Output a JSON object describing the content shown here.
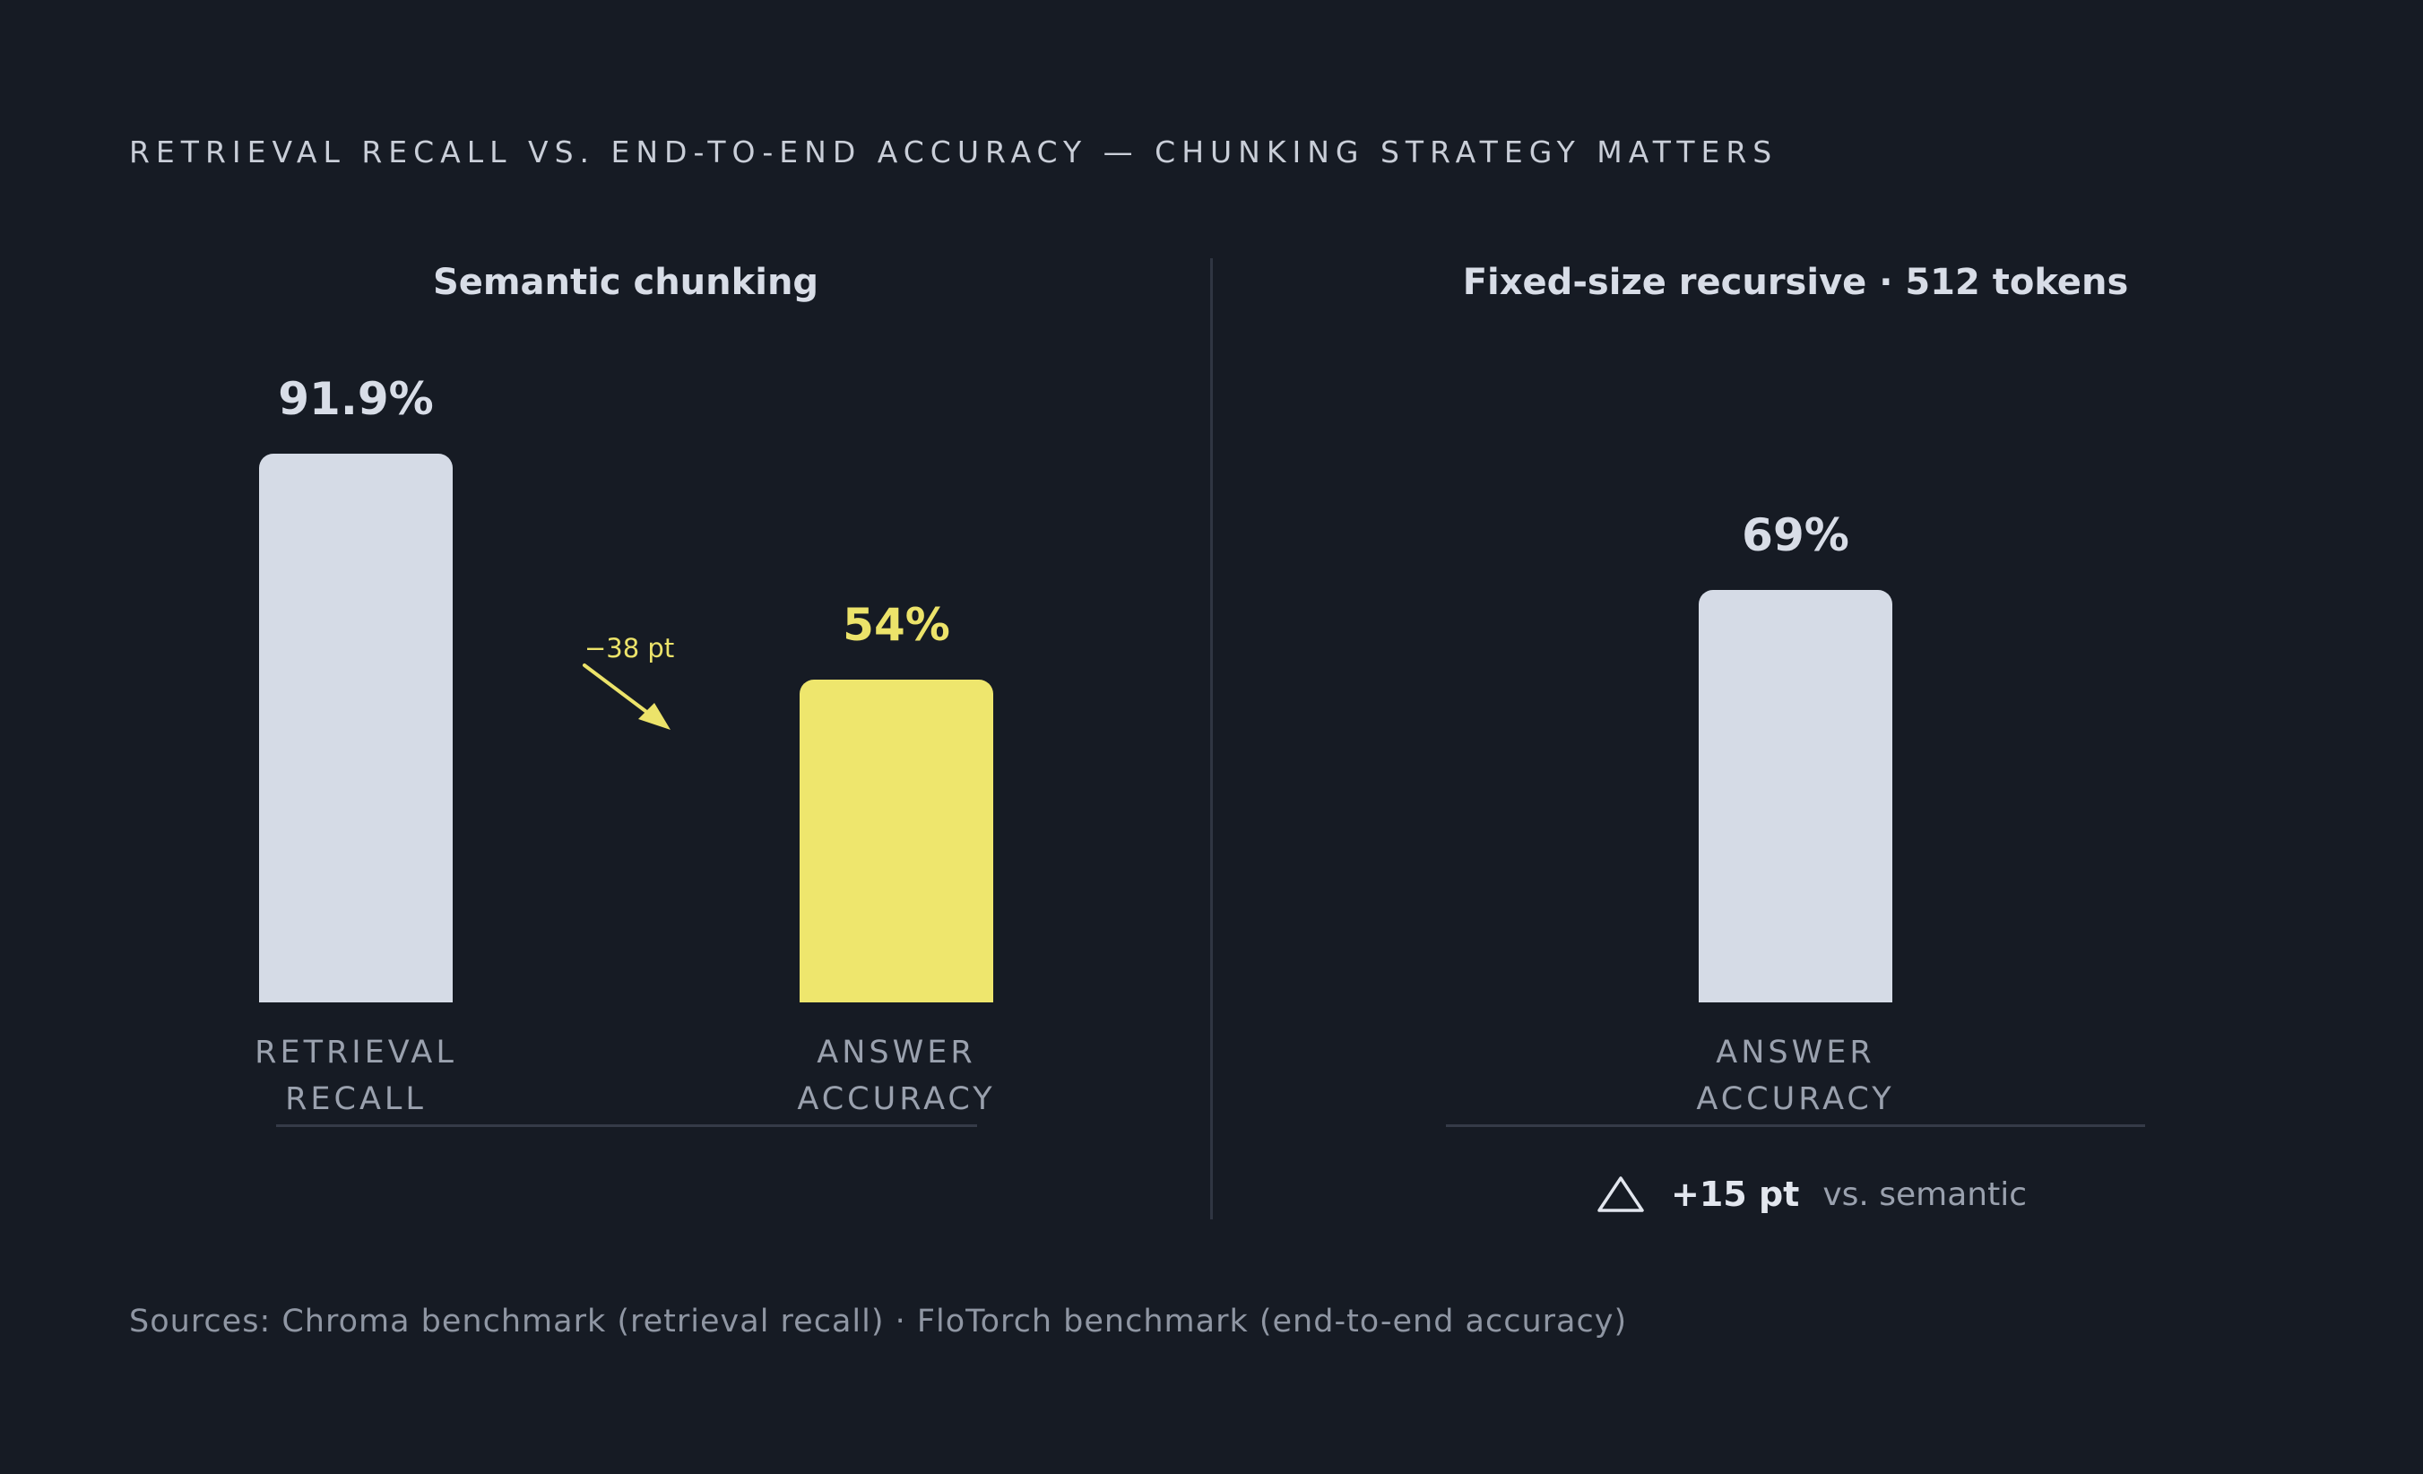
{
  "title": "RETRIEVAL RECALL VS. END-TO-END ACCURACY — CHUNKING STRATEGY MATTERS",
  "source": "Sources: Chroma benchmark (retrieval recall) · FloTorch benchmark (end-to-end accuracy)",
  "colors": {
    "background": "#161b24",
    "bar_neutral": "#d5dbe6",
    "bar_accent": "#eee66d",
    "accent_text": "#ece36a"
  },
  "chart_data": [
    {
      "type": "bar",
      "title": "Semantic chunking",
      "categories": [
        [
          "RETRIEVAL",
          "RECALL"
        ],
        [
          "ANSWER",
          "ACCURACY"
        ]
      ],
      "values": [
        91.9,
        54
      ],
      "value_labels": [
        "91.9%",
        "54%"
      ],
      "bar_colors": [
        "#d5dbe6",
        "#eee66d"
      ],
      "value_label_colors": [
        "#d8dde7",
        "#ece36a"
      ],
      "ylim": [
        0,
        100
      ],
      "annotation": {
        "text": "−38 pt",
        "icon": "arrow-down-right-icon"
      }
    },
    {
      "type": "bar",
      "title": "Fixed-size recursive · 512 tokens",
      "categories": [
        [
          "ANSWER",
          "ACCURACY"
        ]
      ],
      "values": [
        69
      ],
      "value_labels": [
        "69%"
      ],
      "bar_colors": [
        "#d5dbe6"
      ],
      "value_label_colors": [
        "#d8dde7"
      ],
      "ylim": [
        0,
        100
      ],
      "footer": {
        "icon": "delta-triangle-icon",
        "value": "+15 pt",
        "note": "vs. semantic"
      }
    }
  ]
}
